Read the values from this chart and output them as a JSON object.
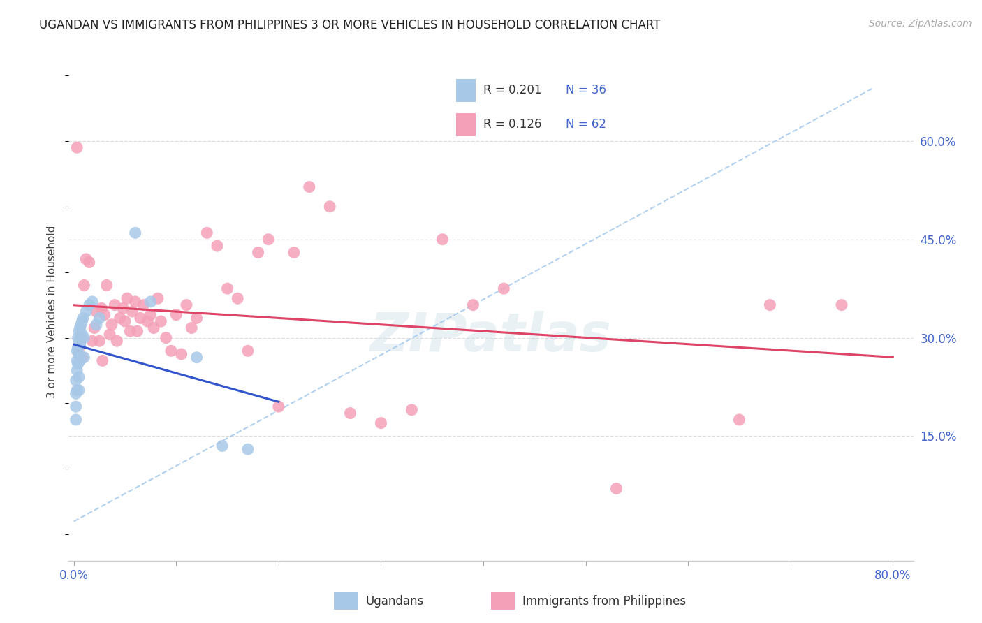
{
  "title": "UGANDAN VS IMMIGRANTS FROM PHILIPPINES 3 OR MORE VEHICLES IN HOUSEHOLD CORRELATION CHART",
  "source": "Source: ZipAtlas.com",
  "ylabel": "3 or more Vehicles in Household",
  "xlim": [
    -0.005,
    0.82
  ],
  "ylim": [
    -0.04,
    0.72
  ],
  "xtick_positions": [
    0.0,
    0.1,
    0.2,
    0.3,
    0.4,
    0.5,
    0.6,
    0.7,
    0.8
  ],
  "xtick_labels": [
    "0.0%",
    "",
    "",
    "",
    "",
    "",
    "",
    "",
    "80.0%"
  ],
  "ytick_positions": [
    0.15,
    0.3,
    0.45,
    0.6
  ],
  "ytick_labels": [
    "15.0%",
    "30.0%",
    "45.0%",
    "60.0%"
  ],
  "color_ugandan": "#a8c8e8",
  "color_philippines": "#f4a0b8",
  "line_color_ugandan": "#3355cc",
  "line_color_philippines": "#dd4466",
  "dashed_color": "#aaccee",
  "watermark": "ZIPatlas",
  "legend_label1": "Ugandans",
  "legend_label2": "Immigrants from Philippines",
  "ugandan_x": [
    0.002,
    0.002,
    0.002,
    0.002,
    0.003,
    0.003,
    0.003,
    0.003,
    0.004,
    0.004,
    0.004,
    0.005,
    0.005,
    0.005,
    0.005,
    0.005,
    0.006,
    0.006,
    0.006,
    0.007,
    0.007,
    0.008,
    0.008,
    0.009,
    0.01,
    0.01,
    0.012,
    0.015,
    0.018,
    0.022,
    0.025,
    0.06,
    0.075,
    0.12,
    0.145,
    0.17
  ],
  "ugandan_y": [
    0.235,
    0.215,
    0.195,
    0.175,
    0.28,
    0.265,
    0.25,
    0.22,
    0.3,
    0.285,
    0.26,
    0.31,
    0.295,
    0.275,
    0.24,
    0.22,
    0.315,
    0.29,
    0.265,
    0.32,
    0.3,
    0.325,
    0.305,
    0.33,
    0.3,
    0.27,
    0.34,
    0.35,
    0.355,
    0.32,
    0.33,
    0.46,
    0.355,
    0.27,
    0.135,
    0.13
  ],
  "philippines_x": [
    0.003,
    0.005,
    0.007,
    0.008,
    0.01,
    0.012,
    0.015,
    0.018,
    0.02,
    0.022,
    0.025,
    0.027,
    0.028,
    0.03,
    0.032,
    0.035,
    0.037,
    0.04,
    0.042,
    0.045,
    0.048,
    0.05,
    0.052,
    0.055,
    0.057,
    0.06,
    0.062,
    0.065,
    0.068,
    0.072,
    0.075,
    0.078,
    0.082,
    0.085,
    0.09,
    0.095,
    0.1,
    0.105,
    0.11,
    0.115,
    0.12,
    0.13,
    0.14,
    0.15,
    0.16,
    0.17,
    0.18,
    0.19,
    0.2,
    0.215,
    0.23,
    0.25,
    0.27,
    0.3,
    0.33,
    0.36,
    0.39,
    0.42,
    0.53,
    0.65,
    0.68,
    0.75
  ],
  "philippines_y": [
    0.59,
    0.285,
    0.3,
    0.27,
    0.38,
    0.42,
    0.415,
    0.295,
    0.315,
    0.34,
    0.295,
    0.345,
    0.265,
    0.335,
    0.38,
    0.305,
    0.32,
    0.35,
    0.295,
    0.33,
    0.345,
    0.325,
    0.36,
    0.31,
    0.34,
    0.355,
    0.31,
    0.33,
    0.35,
    0.325,
    0.335,
    0.315,
    0.36,
    0.325,
    0.3,
    0.28,
    0.335,
    0.275,
    0.35,
    0.315,
    0.33,
    0.46,
    0.44,
    0.375,
    0.36,
    0.28,
    0.43,
    0.45,
    0.195,
    0.43,
    0.53,
    0.5,
    0.185,
    0.17,
    0.19,
    0.45,
    0.35,
    0.375,
    0.07,
    0.175,
    0.35,
    0.35
  ]
}
